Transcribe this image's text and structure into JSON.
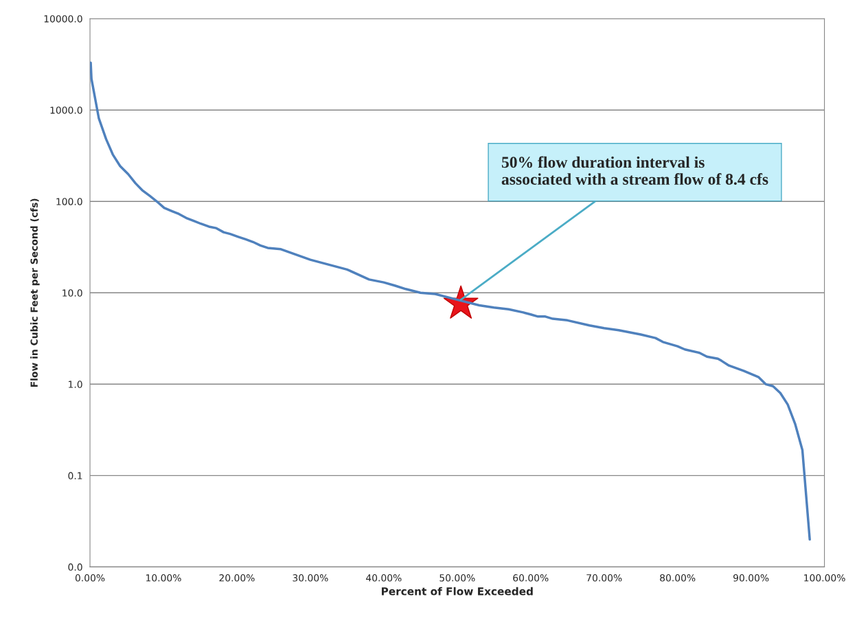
{
  "chart_data": {
    "type": "line",
    "xlabel": "Percent of Flow Exceeded",
    "ylabel": "Flow in Cubic Feet per Second (cfs)",
    "log": "y",
    "grid": "y",
    "xlim": [
      0,
      100
    ],
    "ylim": [
      0.01,
      10000
    ],
    "xticks": [
      {
        "value": 0,
        "label": "0.00%"
      },
      {
        "value": 10,
        "label": "10.00%"
      },
      {
        "value": 20,
        "label": "20.00%"
      },
      {
        "value": 30,
        "label": "30.00%"
      },
      {
        "value": 40,
        "label": "40.00%"
      },
      {
        "value": 50,
        "label": "50.00%"
      },
      {
        "value": 60,
        "label": "60.00%"
      },
      {
        "value": 70,
        "label": "70.00%"
      },
      {
        "value": 80,
        "label": "80.00%"
      },
      {
        "value": 90,
        "label": "90.00%"
      },
      {
        "value": 100,
        "label": "100.00%"
      }
    ],
    "yticks": [
      {
        "value": 0.01,
        "label": "0.0"
      },
      {
        "value": 0.1,
        "label": "0.1"
      },
      {
        "value": 1,
        "label": "1.0"
      },
      {
        "value": 10,
        "label": "10.0"
      },
      {
        "value": 100,
        "label": "100.0"
      },
      {
        "value": 1000,
        "label": "1000.0"
      },
      {
        "value": 10000,
        "label": "10000.0"
      }
    ],
    "series": [
      {
        "color": "#4f81bd",
        "marker": "none",
        "x": [
          0.1,
          0.2,
          1.2,
          2.2,
          3.1,
          4.1,
          5.2,
          6.2,
          7.1,
          8.2,
          9.1,
          10.1,
          11.2,
          12.1,
          13.1,
          14.2,
          15.1,
          16.2,
          17.2,
          18.2,
          19.1,
          20.2,
          21.2,
          22.2,
          23.2,
          24.2,
          26,
          30,
          35,
          38,
          40,
          41.5,
          43,
          45,
          47,
          50,
          53,
          55,
          57,
          59,
          60,
          61,
          62,
          63,
          65,
          68,
          70,
          72,
          75,
          77,
          78,
          80,
          81,
          83,
          84,
          85.5,
          86,
          87,
          89,
          91,
          92,
          93,
          94,
          95,
          96,
          97,
          98
        ],
        "values": [
          3300,
          2200,
          815,
          480,
          327,
          244,
          199,
          158,
          133,
          114,
          100,
          85,
          78,
          73,
          66,
          61,
          57,
          53,
          51,
          46,
          44,
          41,
          38.5,
          36,
          33,
          31,
          30,
          23,
          18,
          14,
          13,
          12,
          11,
          10,
          9.7,
          8.4,
          7.3,
          6.9,
          6.6,
          6.1,
          5.8,
          5.5,
          5.5,
          5.2,
          5.0,
          4.4,
          4.1,
          3.9,
          3.5,
          3.2,
          2.9,
          2.6,
          2.4,
          2.2,
          2.0,
          1.9,
          1.8,
          1.6,
          1.4,
          1.2,
          1.0,
          0.95,
          0.8,
          0.6,
          0.37,
          0.19,
          0.02
        ]
      },
      {
        "type": "scatter",
        "color": "#e8141b",
        "marker": "star",
        "x": [
          50.5
        ],
        "values": [
          7.6
        ]
      }
    ],
    "legend": false,
    "annotations": [
      {
        "text": "50% flow duration interval is\nassociated with a stream flow of 8.4 cfs",
        "x": 50.5,
        "y": 8.4
      }
    ]
  }
}
